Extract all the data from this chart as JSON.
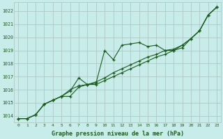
{
  "x": [
    0,
    1,
    2,
    3,
    4,
    5,
    6,
    7,
    8,
    9,
    10,
    11,
    12,
    13,
    14,
    15,
    16,
    17,
    18,
    19,
    20,
    21,
    22,
    23
  ],
  "line1": [
    1013.8,
    1013.8,
    1014.1,
    1014.9,
    1015.2,
    1015.5,
    1015.9,
    1016.9,
    1016.4,
    1016.5,
    1019.0,
    1018.3,
    1019.4,
    1019.5,
    1019.6,
    1019.3,
    1019.4,
    1019.0,
    1019.0,
    1019.4,
    1019.9,
    1020.5,
    1021.7,
    1022.3
  ],
  "line2": [
    1013.8,
    1013.8,
    1014.1,
    1014.9,
    1015.2,
    1015.5,
    1015.5,
    1016.2,
    1016.4,
    1016.4,
    1016.7,
    1017.0,
    1017.3,
    1017.6,
    1017.9,
    1018.2,
    1018.5,
    1018.7,
    1019.0,
    1019.2,
    1019.9,
    1020.5,
    1021.7,
    1022.3
  ],
  "line3": [
    1013.8,
    1013.8,
    1014.1,
    1014.9,
    1015.2,
    1015.5,
    1016.0,
    1016.3,
    1016.4,
    1016.6,
    1016.9,
    1017.3,
    1017.6,
    1017.9,
    1018.2,
    1018.5,
    1018.7,
    1019.0,
    1019.1,
    1019.4,
    1019.9,
    1020.5,
    1021.7,
    1022.3
  ],
  "bg_color": "#c8ece9",
  "grid_color": "#b0c8c5",
  "line_color": "#1a5c1a",
  "xlabel_label": "Graphe pression niveau de la mer (hPa)",
  "line_width": 0.8,
  "marker": "+",
  "marker_size": 3,
  "marker_edge_width": 0.9
}
